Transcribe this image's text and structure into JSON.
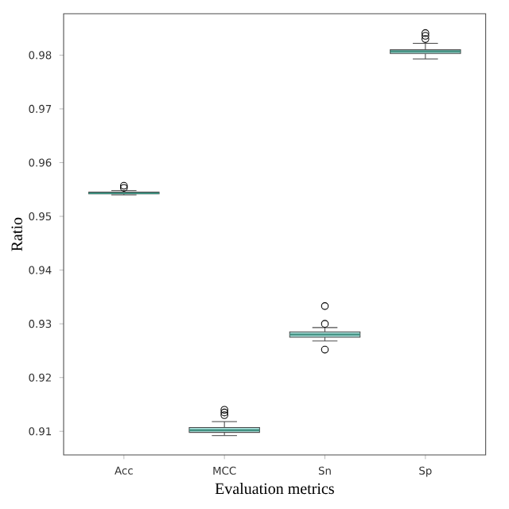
{
  "chart_data": {
    "type": "box",
    "xlabel": "Evaluation metrics",
    "ylabel": "Ratio",
    "categories": [
      "Acc",
      "MCC",
      "Sn",
      "Sp"
    ],
    "color": "#a6dbd6",
    "ylim": [
      0.9056,
      0.9877
    ],
    "yticks": [
      0.91,
      0.92,
      0.93,
      0.94,
      0.95,
      0.96,
      0.97,
      0.98
    ],
    "boxes": [
      {
        "low": 0.954,
        "q1": 0.9542,
        "median": 0.9543,
        "q3": 0.9545,
        "high": 0.9548,
        "outliers": [
          0.9553,
          0.9557
        ]
      },
      {
        "low": 0.9092,
        "q1": 0.9098,
        "median": 0.9102,
        "q3": 0.9107,
        "high": 0.9118,
        "outliers": [
          0.913,
          0.9135,
          0.914
        ]
      },
      {
        "low": 0.9268,
        "q1": 0.9275,
        "median": 0.928,
        "q3": 0.9285,
        "high": 0.9293,
        "outliers": [
          0.9252,
          0.93,
          0.9333
        ]
      },
      {
        "low": 0.9793,
        "q1": 0.9803,
        "median": 0.9807,
        "q3": 0.981,
        "high": 0.9822,
        "outliers": [
          0.983,
          0.9836,
          0.9841
        ]
      }
    ]
  }
}
